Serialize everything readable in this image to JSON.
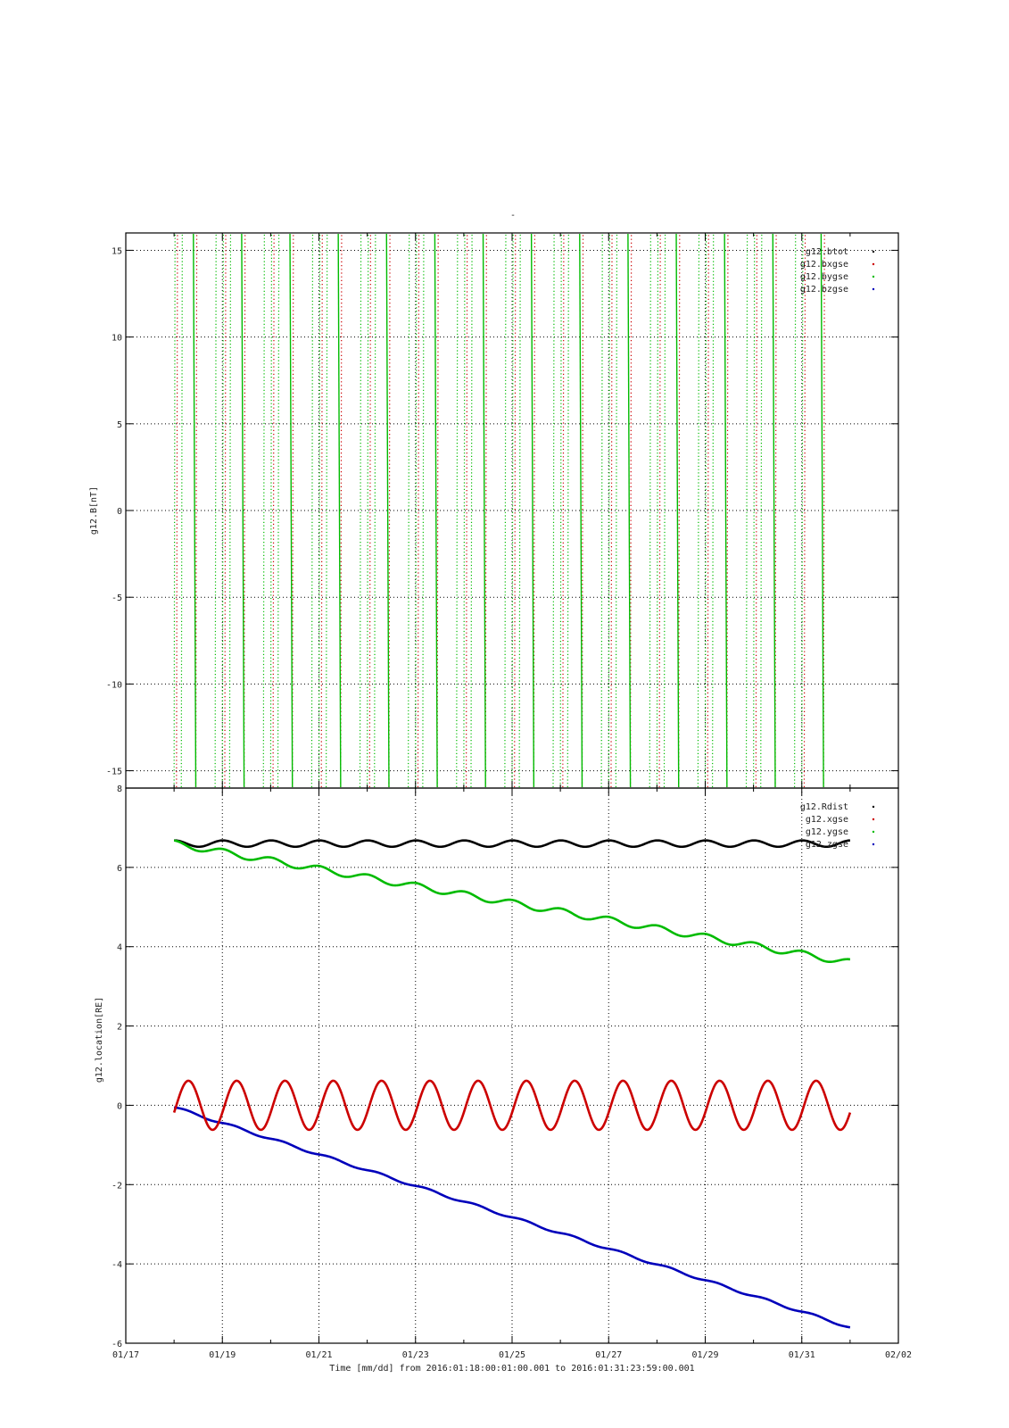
{
  "figure_title": "-",
  "xlabel": "Time [mm/dd]  from 2016:01:18:00:01:00.001  to  2016:01:31:23:59:00.001",
  "colors": {
    "btot": "#000000",
    "bx": "#cc0000",
    "by": "#00bb00",
    "bz": "#0000bb"
  },
  "chart_data": [
    {
      "type": "line",
      "ylabel": "g12.B[nT]",
      "ylim": [
        -16,
        16
      ],
      "yticks": [
        -15,
        -10,
        -5,
        0,
        5,
        10,
        15
      ],
      "ytick_labels": [
        "-15",
        "-10",
        "-5",
        "0",
        "5",
        "10",
        "15"
      ],
      "xlim_days": [
        0,
        16
      ],
      "xticks": [
        "01/17",
        "01/19",
        "01/21",
        "01/23",
        "01/25",
        "01/27",
        "01/29",
        "01/31",
        "02/02"
      ],
      "grid": true,
      "legend_position": "top-right",
      "series": [
        {
          "name": "g12.btot",
          "color": "#000000",
          "style": "dotted",
          "description": "off-scale (not visible)"
        },
        {
          "name": "g12.bxgse",
          "color": "#cc0000",
          "style": "dotted",
          "crossing_days": [
            1.05,
            1.45,
            2.05,
            2.45,
            3.05,
            3.45,
            4.05,
            4.45,
            5.05,
            5.45,
            6.05,
            6.45,
            7.05,
            7.45,
            8.05,
            8.45,
            9.05,
            9.45,
            10.05,
            10.45,
            11.05,
            11.45,
            12.05,
            12.45,
            13.05,
            13.45,
            14.05,
            14.45
          ]
        },
        {
          "name": "g12.bygse",
          "color": "#00bb00",
          "style": "dotted",
          "crossing_days": [
            1.0,
            1.15,
            1.85,
            2.0,
            2.15,
            2.85,
            3.0,
            3.15,
            3.85,
            4.0,
            4.15,
            4.85,
            5.0,
            5.15,
            5.85,
            6.0,
            6.15,
            6.85,
            7.0,
            7.15,
            7.85,
            8.0,
            8.15,
            8.85,
            9.0,
            9.15,
            9.85,
            10.0,
            10.15,
            10.85,
            11.0,
            11.15,
            11.85,
            12.0,
            12.15,
            12.85,
            13.0,
            13.15,
            13.85,
            14.0
          ]
        },
        {
          "name": "g12.bzgse",
          "color": "#0000bb",
          "style": "dotted",
          "description": "off-scale (not visible)"
        }
      ]
    },
    {
      "type": "line",
      "ylabel": "g12.location[RE]",
      "ylim": [
        -6,
        8
      ],
      "yticks": [
        -6,
        -4,
        -2,
        0,
        2,
        4,
        6,
        8
      ],
      "ytick_labels": [
        "-6",
        "-4",
        "-2",
        "0",
        "2",
        "4",
        "6",
        "8"
      ],
      "xlim_days": [
        0,
        16
      ],
      "xticks": [
        "01/17",
        "01/19",
        "01/21",
        "01/23",
        "01/25",
        "01/27",
        "01/29",
        "01/31",
        "02/02"
      ],
      "grid": true,
      "legend_position": "top-right",
      "data_range_days": [
        1.0,
        15.0
      ],
      "period_days": 1.0,
      "series": [
        {
          "name": "g12.Rdist",
          "color": "#000000",
          "mean": 6.6,
          "amplitude": 0.08,
          "start": 6.6,
          "end": 6.65
        },
        {
          "name": "g12.xgse",
          "color": "#cc0000",
          "mean": 0.0,
          "amplitude": 0.62,
          "start": -0.2,
          "end": -0.6
        },
        {
          "name": "g12.ygse",
          "color": "#00bb00",
          "start": 6.6,
          "end": 3.6,
          "amplitude": 0.08
        },
        {
          "name": "g12.zgse",
          "color": "#0000bb",
          "start": -0.05,
          "end": -5.6,
          "amplitude": 0.03
        }
      ]
    }
  ]
}
